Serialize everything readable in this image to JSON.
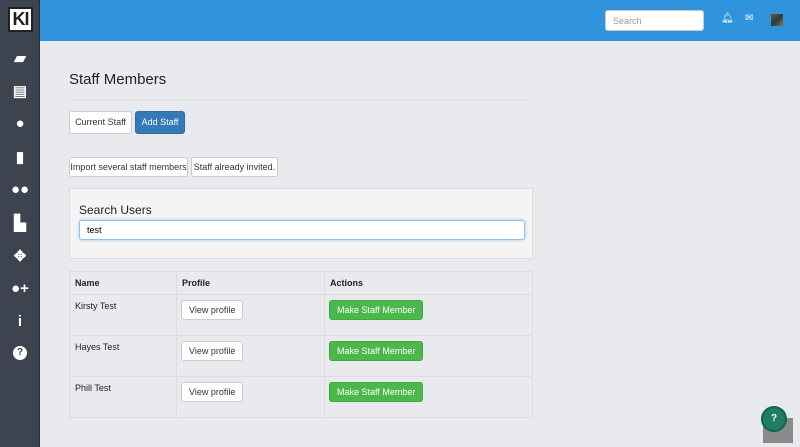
{
  "sidebar": {
    "logo": "KI",
    "items": [
      {
        "icon": "book-icon",
        "glyph": "▰"
      },
      {
        "icon": "newspaper-icon",
        "glyph": "▤"
      },
      {
        "icon": "user-icon",
        "glyph": "●"
      },
      {
        "icon": "id-badge-icon",
        "glyph": "▮"
      },
      {
        "icon": "users-icon",
        "glyph": "●●"
      },
      {
        "icon": "industry-icon",
        "glyph": "▙"
      },
      {
        "icon": "crosshairs-icon",
        "glyph": "✥"
      },
      {
        "icon": "user-plus-icon",
        "glyph": "●+"
      },
      {
        "icon": "info-icon",
        "glyph": "i"
      },
      {
        "icon": "question-circle-icon",
        "glyph": "?"
      }
    ]
  },
  "topbar": {
    "search_placeholder": "Search",
    "colors": {
      "bar": "#2f94dc"
    }
  },
  "page": {
    "title": "Staff Members",
    "tabs": [
      {
        "label": "Current Staff"
      },
      {
        "label": "Add Staff",
        "active": true
      }
    ],
    "actions": [
      {
        "label": "Import several staff members"
      },
      {
        "label": "Staff already invited."
      }
    ],
    "search": {
      "label": "Search Users",
      "value": "test"
    },
    "table": {
      "headers": [
        "Name",
        "Profile",
        "Actions"
      ],
      "rows": [
        {
          "name": "Kirsty Test",
          "profile": "View profile",
          "action": "Make Staff Member"
        },
        {
          "name": "Hayes Test",
          "profile": "View profile",
          "action": "Make Staff Member"
        },
        {
          "name": "Phill Test",
          "profile": "View profile",
          "action": "Make Staff Member"
        }
      ]
    }
  },
  "help": {
    "glyph": "?"
  }
}
